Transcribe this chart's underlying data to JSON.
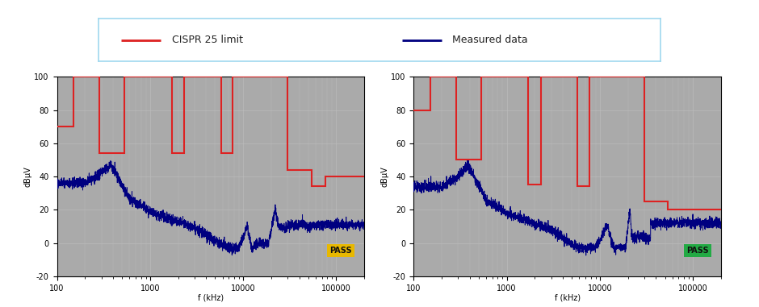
{
  "background_color": "#ffffff",
  "outer_border_color": "#5bc4e0",
  "plot_bg_color": "#aaaaaa",
  "legend_border_color": "#a0d8ef",
  "ylim": [
    -20,
    100
  ],
  "xlim_log": [
    100,
    200000
  ],
  "yticks": [
    -20,
    0,
    20,
    40,
    60,
    80,
    100
  ],
  "ylabel": "dBµV",
  "xlabel": "f (kHz)",
  "pass_box1_color": "#e8b800",
  "pass_box2_color": "#22aa44",
  "cispr_limit_color": "#dd2222",
  "measured_color": "#000080",
  "cispr_left_x": [
    100,
    150,
    150,
    285,
    285,
    530,
    530,
    1705,
    1705,
    2315,
    2315,
    5765,
    5765,
    7695,
    7695,
    30000,
    30000,
    54000,
    54000,
    76000,
    76000,
    200000
  ],
  "cispr_left_y": [
    70,
    70,
    100,
    100,
    54,
    54,
    100,
    100,
    54,
    54,
    100,
    100,
    54,
    54,
    100,
    100,
    44,
    44,
    34,
    34,
    40,
    40
  ],
  "cispr_right_x": [
    100,
    150,
    150,
    285,
    285,
    530,
    530,
    1705,
    1705,
    2315,
    2315,
    5765,
    5765,
    7695,
    7695,
    30000,
    30000,
    54000,
    54000,
    76000,
    76000,
    200000
  ],
  "cispr_right_y": [
    80,
    80,
    100,
    100,
    50,
    50,
    100,
    100,
    35,
    35,
    100,
    100,
    34,
    34,
    100,
    100,
    25,
    25,
    20,
    20,
    20,
    20
  ]
}
